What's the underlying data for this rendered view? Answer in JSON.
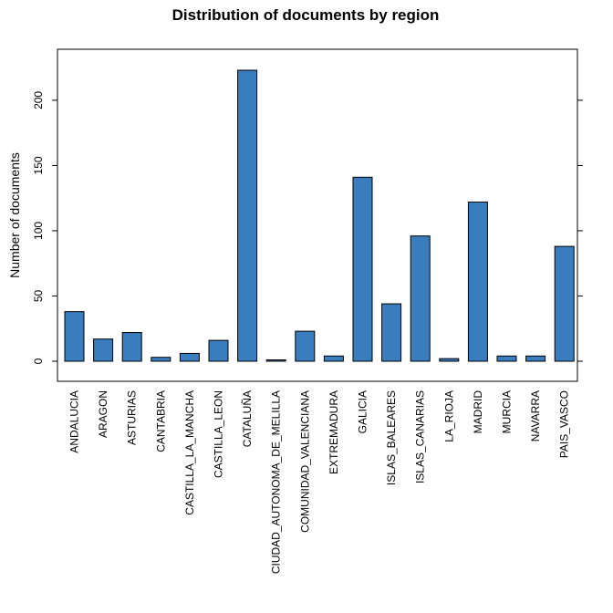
{
  "chart_data": {
    "type": "bar",
    "title": "Distribution of documents by region",
    "ylabel": "Number of documents",
    "xlabel": "",
    "categories": [
      "ANDALUCIA",
      "ARAGON",
      "ASTURIAS",
      "CANTABRIA",
      "CASTILLA_LA_MANCHA",
      "CASTILLA_LEON",
      "CATALUÑA",
      "CIUDAD_AUTONOMA_DE_MELILLA",
      "COMUNIDAD_VALENCIANA",
      "EXTREMADURA",
      "GALICIA",
      "ISLAS_BALEARES",
      "ISLAS_CANARIAS",
      "LA_RIOJA",
      "MADRID",
      "MURCIA",
      "NAVARRA",
      "PAIS_VASCO"
    ],
    "values": [
      38,
      17,
      22,
      3,
      6,
      16,
      223,
      1,
      23,
      4,
      141,
      44,
      96,
      2,
      122,
      4,
      4,
      88
    ],
    "ylim": [
      -15,
      236
    ],
    "yticks": [
      0,
      50,
      100,
      150,
      200
    ],
    "bar_color": "#3a7dbf",
    "grid": false,
    "legend": "none"
  }
}
